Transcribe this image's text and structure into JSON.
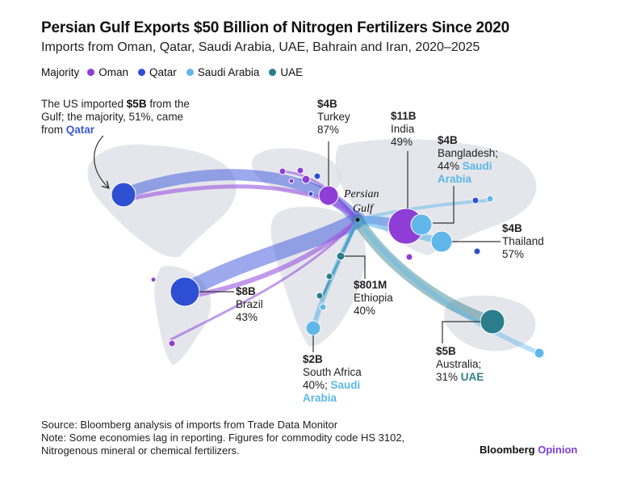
{
  "title": "Persian Gulf Exports $50 Billion of Nitrogen Fertilizers Since 2020",
  "subtitle": "Imports from Oman, Qatar, Saudi Arabia, UAE, Bahrain and Iran, 2020–2025",
  "legend": {
    "lead": "Majority",
    "items": [
      {
        "label": "Oman",
        "color": "#8e3ed6"
      },
      {
        "label": "Qatar",
        "color": "#2f4fd3"
      },
      {
        "label": "Saudi Arabia",
        "color": "#62b7ea"
      },
      {
        "label": "UAE",
        "color": "#2a7d8a"
      }
    ]
  },
  "hub_label": {
    "line1": "Persian",
    "line2": "Gulf"
  },
  "annotations": {
    "us": {
      "pre": "The US imported ",
      "value": "$5B",
      "mid": " from the Gulf; the majority, 51%, came from ",
      "country": "Qatar"
    },
    "turkey": {
      "value": "$4B",
      "name": "Turkey",
      "pct": "87%"
    },
    "india": {
      "value": "$11B",
      "name": "India",
      "pct": "49%"
    },
    "bangladesh": {
      "value": "$4B",
      "name": "Bangladesh;",
      "pct": "44% ",
      "country": "Saudi Arabia"
    },
    "thailand": {
      "value": "$4B",
      "name": "Thailand",
      "pct": "57%"
    },
    "brazil": {
      "value": "$8B",
      "name": "Brazil",
      "pct": "43%"
    },
    "ethiopia": {
      "value": "$801M",
      "name": "Ethiopia",
      "pct": "40%"
    },
    "southafrica": {
      "value": "$2B",
      "name": "South Africa",
      "pct": "40%; ",
      "country": "Saudi Arabia"
    },
    "australia": {
      "value": "$5B",
      "name": "Australia;",
      "pct": "31% ",
      "country": "UAE"
    }
  },
  "footer": {
    "source": "Source: Bloomberg analysis of imports from Trade Data Monitor",
    "note": "Note: Some economies lag in reporting. Figures for commodity code HS 3102, Nitrogenous mineral or chemical fertilizers."
  },
  "brand": {
    "name": "Bloomberg",
    "suffix": "Opinion"
  },
  "flows": [
    {
      "dest": "United States",
      "value_usd_b": 5,
      "majority": "Qatar",
      "majority_pct": 51
    },
    {
      "dest": "Turkey",
      "value_usd_b": 4,
      "majority": "Oman",
      "majority_pct": 87
    },
    {
      "dest": "India",
      "value_usd_b": 11,
      "majority": "Oman",
      "majority_pct": 49
    },
    {
      "dest": "Bangladesh",
      "value_usd_b": 4,
      "majority": "Saudi Arabia",
      "majority_pct": 44
    },
    {
      "dest": "Thailand",
      "value_usd_b": 4,
      "majority": "Saudi Arabia",
      "majority_pct": 57
    },
    {
      "dest": "Brazil",
      "value_usd_b": 8,
      "majority": "Qatar",
      "majority_pct": 43
    },
    {
      "dest": "Ethiopia",
      "value_usd_b": 0.801,
      "majority": "UAE",
      "majority_pct": 40
    },
    {
      "dest": "South Africa",
      "value_usd_b": 2,
      "majority": "Saudi Arabia",
      "majority_pct": 40
    },
    {
      "dest": "Australia",
      "value_usd_b": 5,
      "majority": "UAE",
      "majority_pct": 31
    }
  ]
}
